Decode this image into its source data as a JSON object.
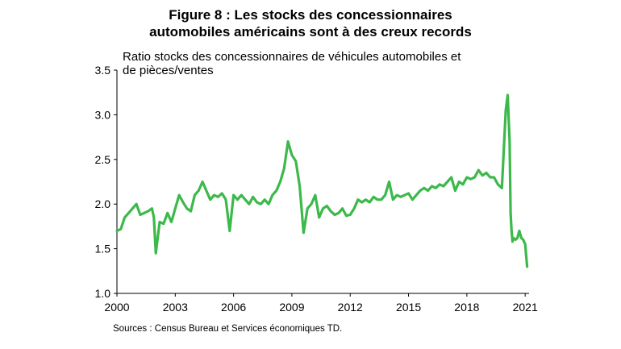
{
  "chart_data": {
    "type": "line",
    "title_lines": [
      "Figure 8 : Les stocks des concessionnaires",
      "automobiles  américains  sont à des creux records"
    ],
    "ylabel_lines": [
      "Ratio stocks des concessionnaires de véhicules automobiles et",
      "de pièces/ventes"
    ],
    "xlabel": "",
    "xlim": [
      2000,
      2021.2
    ],
    "ylim": [
      1.0,
      3.5
    ],
    "xticks": [
      2000,
      2003,
      2006,
      2009,
      2012,
      2015,
      2018,
      2021
    ],
    "xtick_labels": [
      "2000",
      "2003",
      "2006",
      "2009",
      "2012",
      "2015",
      "2018",
      "2021"
    ],
    "yticks": [
      1.0,
      1.5,
      2.0,
      2.5,
      3.0,
      3.5
    ],
    "ytick_labels": [
      "1.0",
      "1.5",
      "2.0",
      "2.5",
      "3.0",
      "3.5"
    ],
    "grid": false,
    "legend": "none",
    "color": "#3cb94a",
    "series": [
      {
        "x": [
          2000.0,
          2000.2,
          2000.4,
          2000.6,
          2000.8,
          2001.0,
          2001.2,
          2001.4,
          2001.6,
          2001.8,
          2001.9,
          2002.0,
          2002.2,
          2002.4,
          2002.6,
          2002.8,
          2003.0,
          2003.2,
          2003.4,
          2003.6,
          2003.8,
          2004.0,
          2004.2,
          2004.4,
          2004.6,
          2004.8,
          2005.0,
          2005.2,
          2005.4,
          2005.6,
          2005.8,
          2006.0,
          2006.2,
          2006.4,
          2006.6,
          2006.8,
          2007.0,
          2007.2,
          2007.4,
          2007.6,
          2007.8,
          2008.0,
          2008.2,
          2008.4,
          2008.6,
          2008.8,
          2009.0,
          2009.2,
          2009.4,
          2009.6,
          2009.8,
          2010.0,
          2010.2,
          2010.4,
          2010.6,
          2010.8,
          2011.0,
          2011.2,
          2011.4,
          2011.6,
          2011.8,
          2012.0,
          2012.2,
          2012.4,
          2012.6,
          2012.8,
          2013.0,
          2013.2,
          2013.4,
          2013.6,
          2013.8,
          2014.0,
          2014.2,
          2014.4,
          2014.6,
          2014.8,
          2015.0,
          2015.2,
          2015.4,
          2015.6,
          2015.8,
          2016.0,
          2016.2,
          2016.4,
          2016.6,
          2016.8,
          2017.0,
          2017.2,
          2017.4,
          2017.6,
          2017.8,
          2018.0,
          2018.2,
          2018.4,
          2018.6,
          2018.8,
          2019.0,
          2019.2,
          2019.4,
          2019.6,
          2019.8,
          2020.0,
          2020.1,
          2020.2,
          2020.25,
          2020.3,
          2020.35,
          2020.4,
          2020.5,
          2020.6,
          2020.7,
          2020.8,
          2020.9,
          2021.0,
          2021.1
        ],
        "y": [
          1.7,
          1.72,
          1.85,
          1.9,
          1.95,
          2.0,
          1.88,
          1.9,
          1.92,
          1.95,
          1.85,
          1.45,
          1.8,
          1.78,
          1.9,
          1.8,
          1.95,
          2.1,
          2.02,
          1.95,
          1.92,
          2.1,
          2.15,
          2.25,
          2.15,
          2.05,
          2.1,
          2.08,
          2.12,
          2.05,
          1.7,
          2.1,
          2.05,
          2.1,
          2.05,
          2.0,
          2.08,
          2.02,
          2.0,
          2.05,
          2.0,
          2.1,
          2.15,
          2.25,
          2.4,
          2.7,
          2.55,
          2.48,
          2.2,
          1.68,
          1.95,
          2.0,
          2.1,
          1.85,
          1.95,
          1.98,
          1.92,
          1.88,
          1.9,
          1.95,
          1.87,
          1.88,
          1.95,
          2.05,
          2.02,
          2.05,
          2.02,
          2.08,
          2.05,
          2.05,
          2.1,
          2.25,
          2.05,
          2.1,
          2.08,
          2.1,
          2.12,
          2.05,
          2.1,
          2.15,
          2.18,
          2.15,
          2.2,
          2.18,
          2.22,
          2.2,
          2.25,
          2.3,
          2.15,
          2.25,
          2.22,
          2.3,
          2.28,
          2.3,
          2.38,
          2.32,
          2.35,
          2.3,
          2.3,
          2.22,
          2.18,
          3.05,
          3.22,
          2.7,
          1.9,
          1.7,
          1.58,
          1.62,
          1.6,
          1.62,
          1.7,
          1.62,
          1.6,
          1.55,
          1.3
        ]
      }
    ]
  },
  "footer": {
    "source": "Sources : Census Bureau  et Services économiques  TD."
  }
}
